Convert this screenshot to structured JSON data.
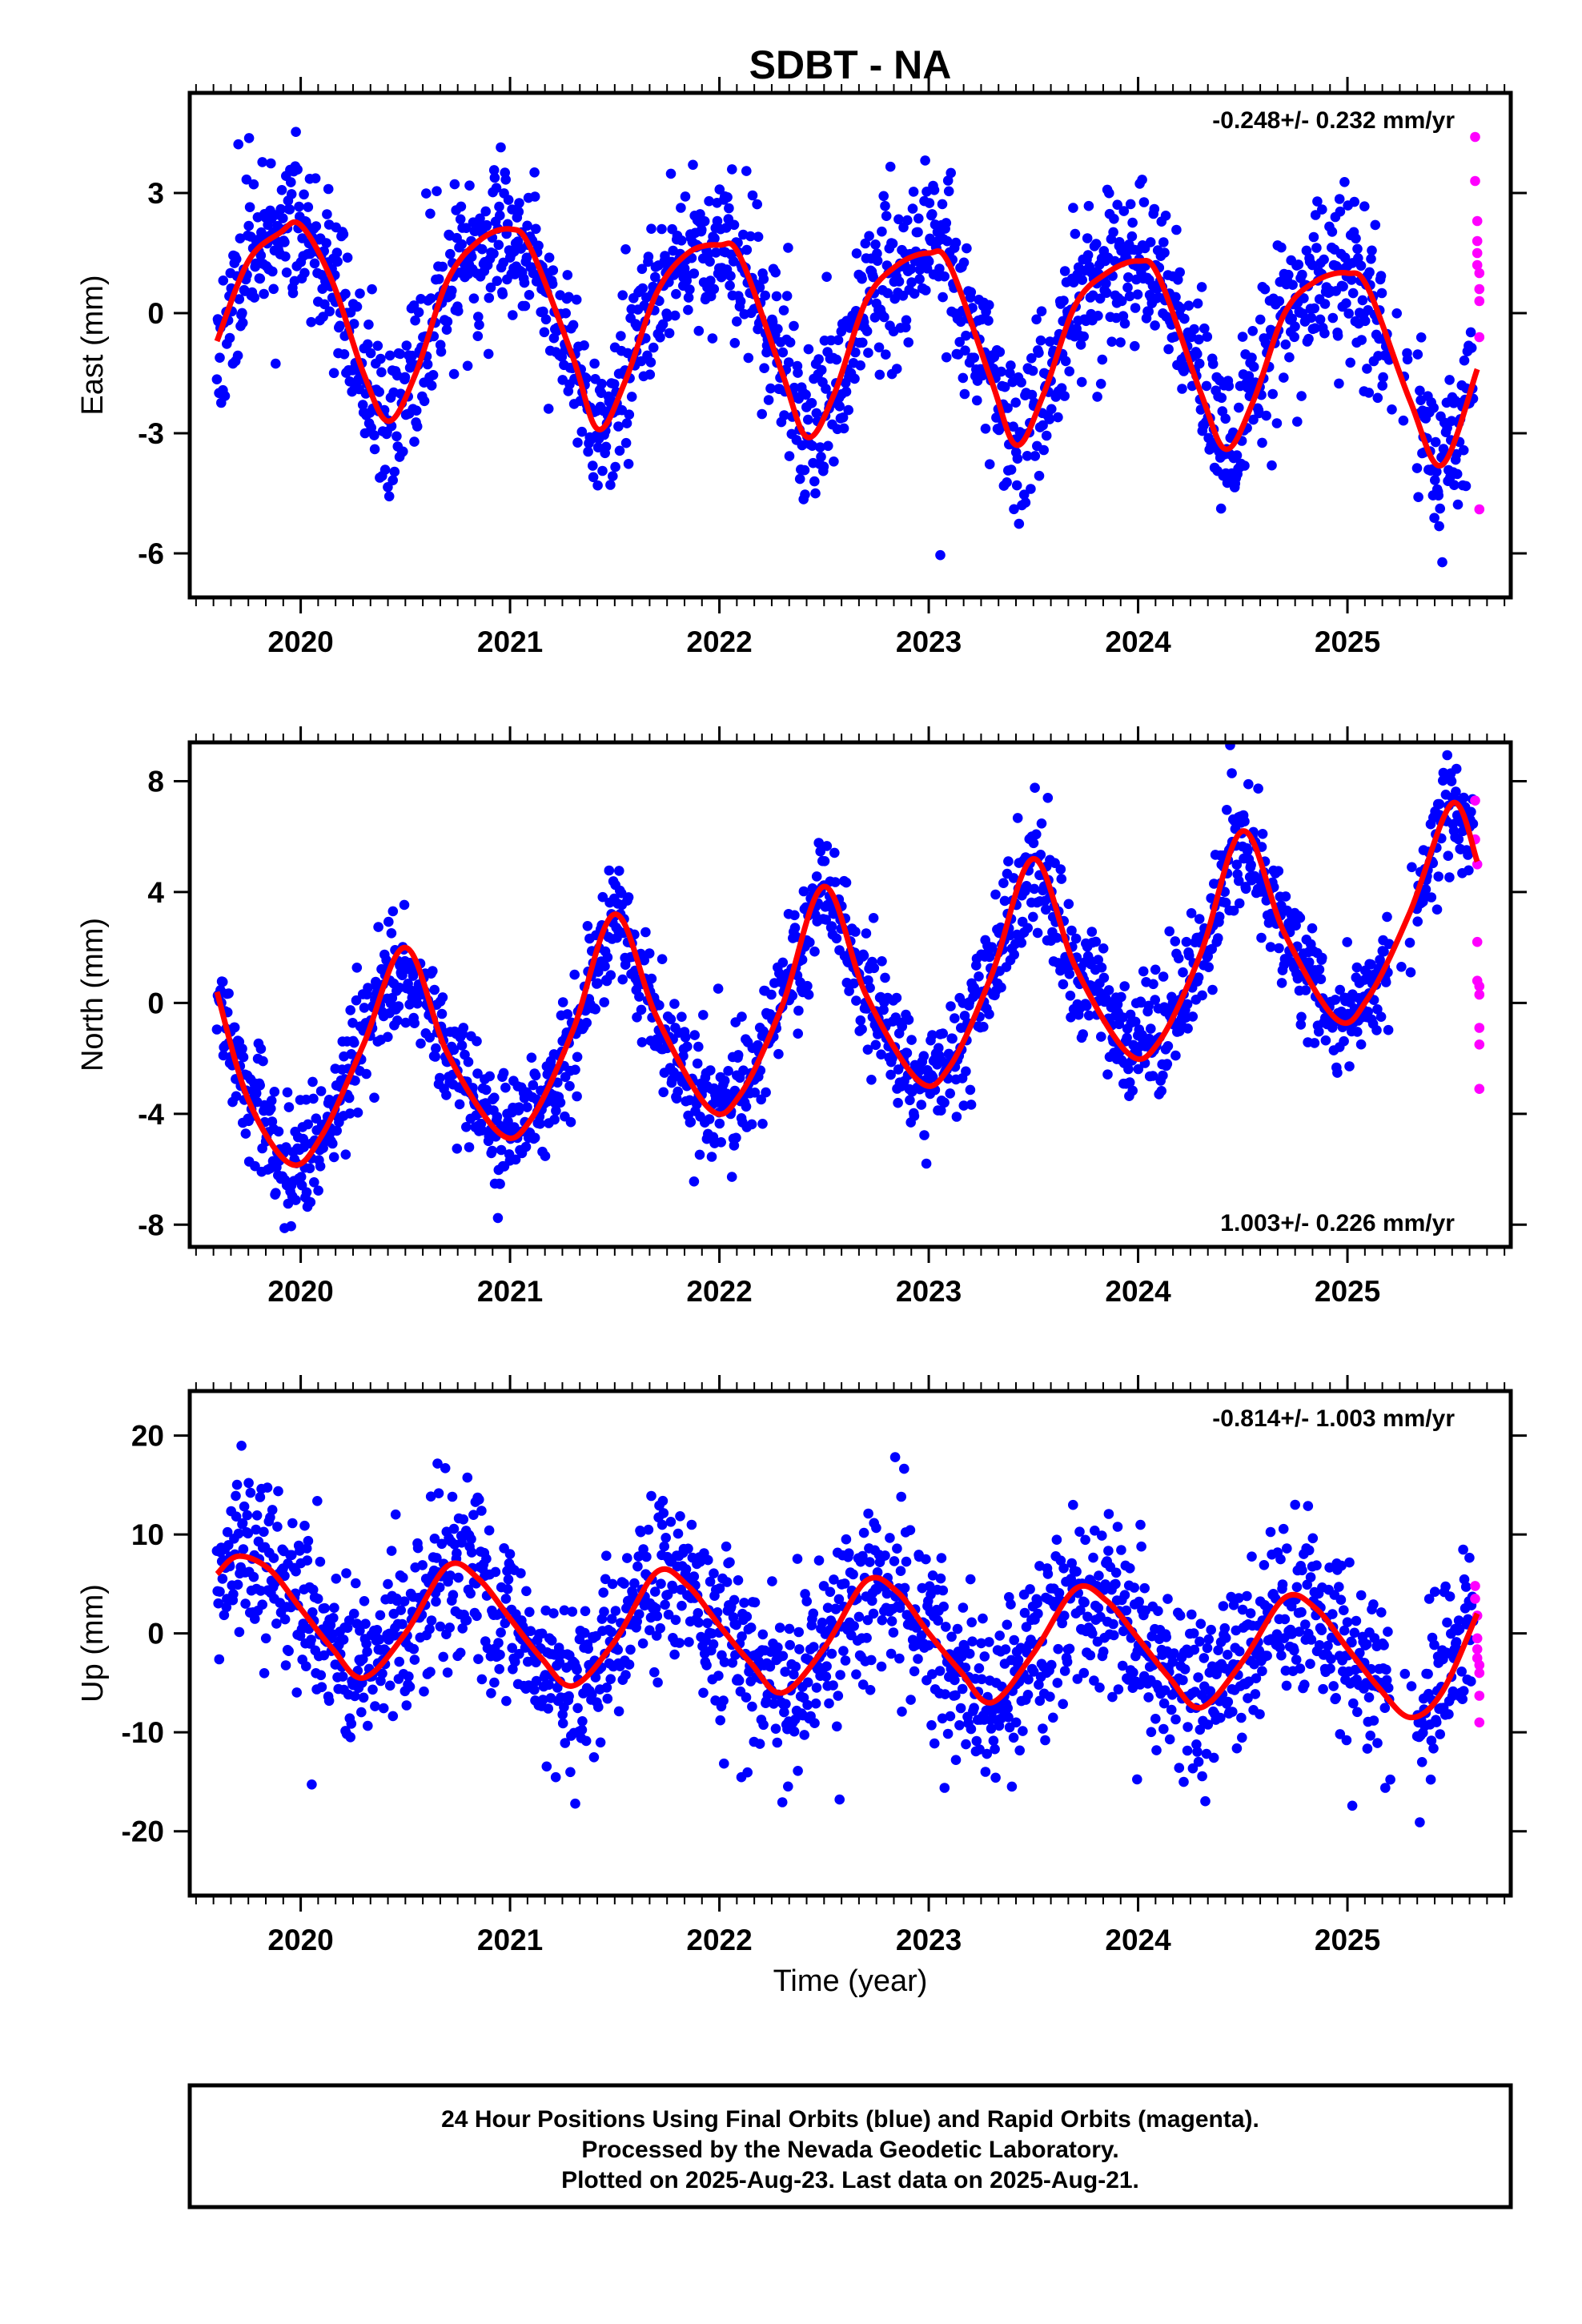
{
  "title": "SDBT - NA",
  "x_label": "Time (year)",
  "footer": {
    "line1": "24 Hour Positions Using Final Orbits (blue) and Rapid Orbits (magenta).",
    "line2": "Processed by the Nevada Geodetic Laboratory.",
    "line3": "Plotted on 2025-Aug-23. Last data on 2025-Aug-21."
  },
  "colors": {
    "final": "#0000ff",
    "rapid": "#ff00ff",
    "model": "#ff0000",
    "frame": "#000000"
  },
  "chart_data": [
    {
      "type": "scatter",
      "panel": "east",
      "ylabel": "East (mm)",
      "annotation": "-0.248+/- 0.232 mm/yr",
      "annotation_position": "top-right",
      "xlim": [
        2019.47,
        2025.78
      ],
      "ylim": [
        -7.1,
        5.5
      ],
      "xticks": [
        2020,
        2021,
        2022,
        2023,
        2024,
        2025
      ],
      "xtick_labels": [
        "2020",
        "2021",
        "2022",
        "2023",
        "2024",
        "2025"
      ],
      "yticks": [
        -6,
        -3,
        0,
        3
      ],
      "ytick_labels": [
        "-6",
        "-3",
        "0",
        "3"
      ],
      "model": {
        "x": [
          2019.6,
          2019.75,
          2019.9,
          2020.0,
          2020.15,
          2020.3,
          2020.42,
          2020.55,
          2020.7,
          2020.85,
          2021.0,
          2021.1,
          2021.3,
          2021.42,
          2021.55,
          2021.7,
          2021.85,
          2022.0,
          2022.1,
          2022.3,
          2022.42,
          2022.55,
          2022.7,
          2022.85,
          2023.0,
          2023.1,
          2023.3,
          2023.42,
          2023.55,
          2023.7,
          2023.85,
          2024.0,
          2024.1,
          2024.3,
          2024.42,
          2024.55,
          2024.7,
          2024.85,
          2025.0,
          2025.1,
          2025.3,
          2025.45,
          2025.62
        ],
        "y": [
          -0.7,
          1.3,
          2.0,
          2.2,
          0.8,
          -1.5,
          -2.7,
          -1.5,
          0.8,
          1.8,
          2.1,
          1.6,
          -1.1,
          -2.9,
          -1.7,
          0.5,
          1.5,
          1.7,
          1.4,
          -1.5,
          -3.1,
          -2.0,
          0.3,
          1.2,
          1.5,
          1.2,
          -1.7,
          -3.3,
          -2.0,
          0.2,
          1.0,
          1.3,
          0.9,
          -2.0,
          -3.4,
          -2.2,
          0.0,
          0.8,
          1.0,
          0.6,
          -2.2,
          -3.8,
          -1.4
        ]
      },
      "series": [
        {
          "name": "Final Orbits (blue)",
          "source": "final",
          "n": 1750,
          "x_range": [
            2019.6,
            2025.6
          ],
          "period_sd": 1.0,
          "outlier_rate": 0.012,
          "outlier_sd": 3.0,
          "seed": 11
        },
        {
          "name": "Rapid Orbits (magenta)",
          "source": "rapid",
          "x": [
            2025.61,
            2025.61,
            2025.62,
            2025.62,
            2025.62,
            2025.62,
            2025.63,
            2025.63,
            2025.63,
            2025.63,
            2025.63
          ],
          "y": [
            4.4,
            3.3,
            2.3,
            1.8,
            1.5,
            1.2,
            0.6,
            0.3,
            1.0,
            -0.6,
            -4.9
          ]
        }
      ]
    },
    {
      "type": "scatter",
      "panel": "north",
      "ylabel": "North (mm)",
      "annotation": "1.003+/- 0.226 mm/yr",
      "annotation_position": "bottom-right",
      "xlim": [
        2019.47,
        2025.78
      ],
      "ylim": [
        -8.8,
        9.4
      ],
      "xticks": [
        2020,
        2021,
        2022,
        2023,
        2024,
        2025
      ],
      "xtick_labels": [
        "2020",
        "2021",
        "2022",
        "2023",
        "2024",
        "2025"
      ],
      "yticks": [
        -8,
        -4,
        0,
        4,
        8
      ],
      "ytick_labels": [
        "-8",
        "-4",
        "0",
        "4",
        "8"
      ],
      "model": {
        "x": [
          2019.6,
          2019.75,
          2019.95,
          2020.1,
          2020.3,
          2020.5,
          2020.7,
          2020.95,
          2021.1,
          2021.3,
          2021.5,
          2021.7,
          2021.95,
          2022.1,
          2022.3,
          2022.5,
          2022.7,
          2022.95,
          2023.1,
          2023.3,
          2023.5,
          2023.7,
          2023.95,
          2024.1,
          2024.3,
          2024.5,
          2024.7,
          2024.95,
          2025.1,
          2025.3,
          2025.5,
          2025.62
        ],
        "y": [
          0.4,
          -3.5,
          -5.8,
          -4.8,
          -1.5,
          2.0,
          -1.8,
          -4.7,
          -4.2,
          -1.0,
          3.2,
          -0.5,
          -3.8,
          -3.3,
          -0.1,
          4.2,
          0.3,
          -2.8,
          -2.3,
          1.0,
          5.2,
          1.3,
          -1.8,
          -1.4,
          1.8,
          6.2,
          2.5,
          -0.6,
          0.2,
          3.3,
          7.2,
          5.1
        ]
      },
      "series": [
        {
          "name": "Final Orbits (blue)",
          "source": "final",
          "n": 1750,
          "x_range": [
            2019.6,
            2025.6
          ],
          "period_sd": 1.05,
          "outlier_rate": 0.01,
          "outlier_sd": 2.4,
          "seed": 23
        },
        {
          "name": "Rapid Orbits (magenta)",
          "source": "rapid",
          "x": [
            2025.61,
            2025.61,
            2025.62,
            2025.62,
            2025.62,
            2025.63,
            2025.63,
            2025.63,
            2025.63,
            2025.63
          ],
          "y": [
            7.3,
            5.9,
            5.0,
            2.2,
            0.8,
            0.6,
            0.3,
            -0.9,
            -1.5,
            -3.1
          ]
        }
      ]
    },
    {
      "type": "scatter",
      "panel": "up",
      "ylabel": "Up (mm)",
      "annotation": "-0.814+/- 1.003 mm/yr",
      "annotation_position": "top-right",
      "xlim": [
        2019.47,
        2025.78
      ],
      "ylim": [
        -26.5,
        24.5
      ],
      "xticks": [
        2020,
        2021,
        2022,
        2023,
        2024,
        2025
      ],
      "xtick_labels": [
        "2020",
        "2021",
        "2022",
        "2023",
        "2024",
        "2025"
      ],
      "yticks": [
        -20,
        -10,
        0,
        10,
        20
      ],
      "ytick_labels": [
        "-20",
        "-10",
        "0",
        "10",
        "20"
      ],
      "model": {
        "x": [
          2019.6,
          2019.7,
          2019.85,
          2020.0,
          2020.15,
          2020.3,
          2020.5,
          2020.7,
          2020.85,
          2021.0,
          2021.15,
          2021.3,
          2021.5,
          2021.7,
          2021.85,
          2022.0,
          2022.15,
          2022.3,
          2022.5,
          2022.7,
          2022.85,
          2023.0,
          2023.15,
          2023.3,
          2023.5,
          2023.7,
          2023.85,
          2024.0,
          2024.15,
          2024.3,
          2024.5,
          2024.7,
          2024.85,
          2025.0,
          2025.15,
          2025.3,
          2025.45,
          2025.62
        ],
        "y": [
          6.0,
          7.8,
          6.5,
          2.5,
          -1.5,
          -4.5,
          0.0,
          6.8,
          5.5,
          1.5,
          -2.5,
          -5.3,
          -0.8,
          6.2,
          4.8,
          0.8,
          -3.0,
          -6.0,
          -1.5,
          5.3,
          4.2,
          0.0,
          -3.8,
          -7.0,
          -2.0,
          4.5,
          3.3,
          -0.5,
          -4.5,
          -7.5,
          -2.8,
          3.6,
          2.5,
          -1.5,
          -5.5,
          -8.5,
          -6.0,
          2.0
        ]
      },
      "series": [
        {
          "name": "Final Orbits (blue)",
          "source": "final",
          "n": 1750,
          "x_range": [
            2019.6,
            2025.6
          ],
          "period_sd": 4.3,
          "outlier_rate": 0.012,
          "outlier_sd": 9.0,
          "seed": 37
        },
        {
          "name": "Rapid Orbits (magenta)",
          "source": "rapid",
          "x": [
            2025.61,
            2025.61,
            2025.62,
            2025.62,
            2025.62,
            2025.62,
            2025.63,
            2025.63,
            2025.63,
            2025.63
          ],
          "y": [
            4.8,
            3.5,
            1.8,
            -0.5,
            -1.6,
            -2.5,
            -3.2,
            -4.0,
            -6.3,
            -9.0
          ]
        }
      ]
    }
  ]
}
